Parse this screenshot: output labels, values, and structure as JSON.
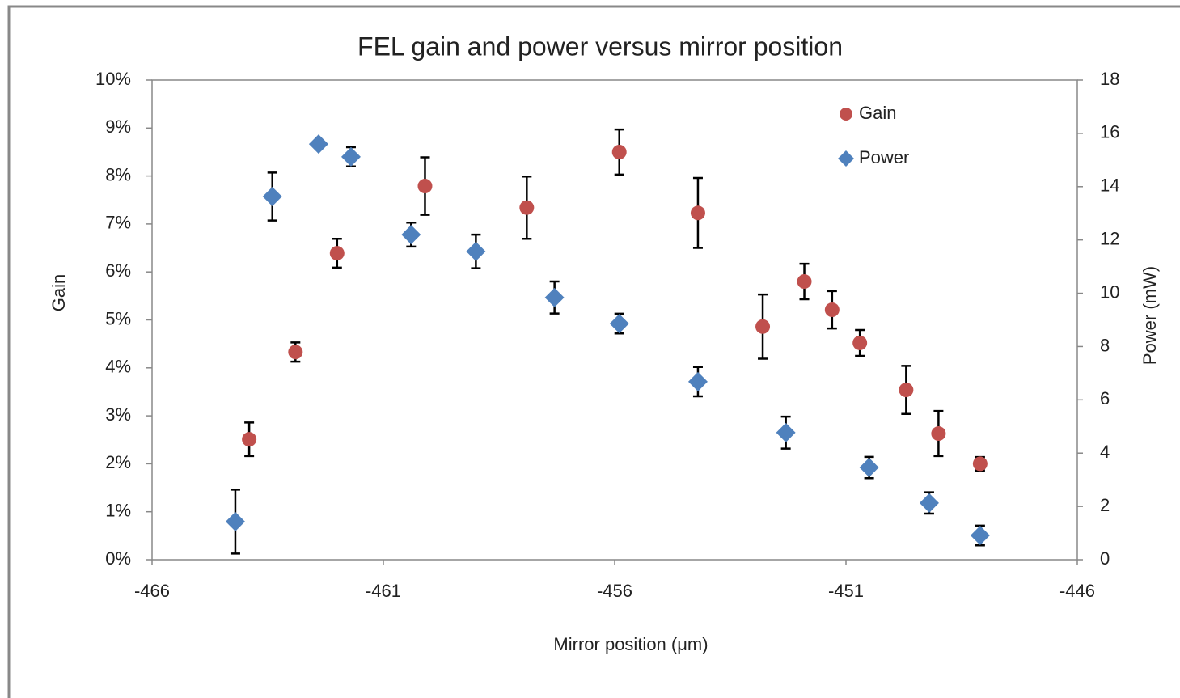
{
  "chart_data": {
    "type": "scatter",
    "title": "FEL gain and power versus mirror position",
    "xlabel": "Mirror position (μm)",
    "ylabel": "Gain",
    "y2label": "Power (mW)",
    "xlim": [
      -466,
      -446
    ],
    "xticks": [
      -466,
      -461,
      -456,
      -451,
      -446
    ],
    "ylim": [
      0,
      10
    ],
    "yticks": [
      {
        "value": 0,
        "label": "0%"
      },
      {
        "value": 1,
        "label": "1%"
      },
      {
        "value": 2,
        "label": "2%"
      },
      {
        "value": 3,
        "label": "3%"
      },
      {
        "value": 4,
        "label": "4%"
      },
      {
        "value": 5,
        "label": "5%"
      },
      {
        "value": 6,
        "label": "6%"
      },
      {
        "value": 7,
        "label": "7%"
      },
      {
        "value": 8,
        "label": "8%"
      },
      {
        "value": 9,
        "label": "9%"
      },
      {
        "value": 10,
        "label": "10%"
      }
    ],
    "y2lim": [
      0,
      18
    ],
    "y2ticks": [
      0,
      2,
      4,
      6,
      8,
      10,
      12,
      14,
      16,
      18
    ],
    "legend": "upper right",
    "series": [
      {
        "name": "Gain",
        "color": "#c0504d",
        "marker": "circle",
        "x": [
          -463.9,
          -462.9,
          -462.0,
          -460.1,
          -457.9,
          -455.9,
          -454.2,
          -452.8,
          -451.9,
          -451.3,
          -450.7,
          -449.7,
          -449.0,
          -448.1
        ],
        "values": [
          2.51,
          4.33,
          6.39,
          7.79,
          7.34,
          8.5,
          7.23,
          4.86,
          5.8,
          5.21,
          4.52,
          3.54,
          2.63,
          2.0
        ],
        "errors": [
          0.35,
          0.2,
          0.3,
          0.6,
          0.65,
          0.47,
          0.73,
          0.67,
          0.37,
          0.39,
          0.27,
          0.5,
          0.47,
          0.14
        ]
      },
      {
        "name": "Power",
        "color": "#4f81bd",
        "marker": "diamond",
        "axis": "y2",
        "x": [
          -464.2,
          -463.4,
          -462.4,
          -461.7,
          -460.4,
          -459.0,
          -457.3,
          -455.9,
          -454.2,
          -452.3,
          -450.5,
          -449.2,
          -448.1
        ],
        "values": [
          1.43,
          13.63,
          15.6,
          15.12,
          12.2,
          11.57,
          9.84,
          8.86,
          6.68,
          4.77,
          3.46,
          2.13,
          0.91
        ],
        "errors": [
          1.2,
          0.9,
          0.1,
          0.36,
          0.45,
          0.63,
          0.6,
          0.37,
          0.55,
          0.6,
          0.4,
          0.4,
          0.37
        ]
      }
    ]
  }
}
